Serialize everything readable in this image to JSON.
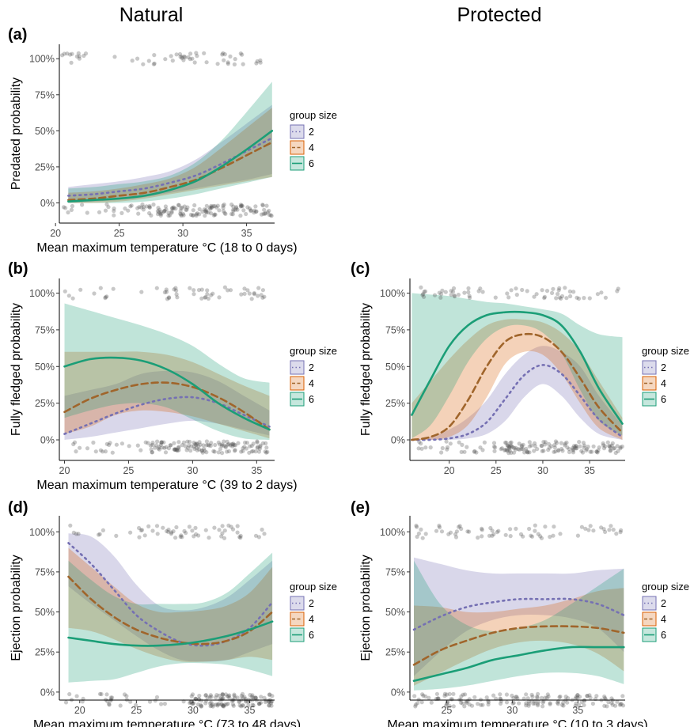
{
  "column_titles": [
    "Natural",
    "Protected"
  ],
  "legend": {
    "title": "group size",
    "entries": [
      "2",
      "4",
      "6"
    ]
  },
  "colors": {
    "2": "#7570B3",
    "4": "#D95F02",
    "6": "#1B9E77",
    "points": "#555555"
  },
  "chart_data": [
    {
      "panel": "(a)",
      "column": "Natural",
      "type": "line",
      "xlabel": "Mean maximum temperature °C (18 to 0 days)",
      "ylabel": "Predated probability",
      "xlim": [
        20.3,
        37.2
      ],
      "xticks": [
        20,
        25,
        30,
        35
      ],
      "ylim": [
        -0.14,
        1.1
      ],
      "yticks": [
        0,
        0.25,
        0.5,
        0.75,
        1.0
      ],
      "yticklabels": [
        "0%",
        "25%",
        "50%",
        "75%",
        "100%"
      ],
      "series": [
        {
          "name": "2",
          "x": [
            21,
            23,
            25,
            27,
            29,
            31,
            33,
            35,
            37
          ],
          "values": [
            0.05,
            0.06,
            0.08,
            0.1,
            0.14,
            0.19,
            0.27,
            0.36,
            0.45
          ],
          "lower": [
            0.0,
            0.01,
            0.02,
            0.04,
            0.07,
            0.1,
            0.13,
            0.16,
            0.2
          ],
          "upper": [
            0.11,
            0.13,
            0.15,
            0.18,
            0.22,
            0.3,
            0.42,
            0.55,
            0.68
          ]
        },
        {
          "name": "4",
          "x": [
            21,
            23,
            25,
            27,
            29,
            31,
            33,
            35,
            37
          ],
          "values": [
            0.02,
            0.03,
            0.05,
            0.07,
            0.11,
            0.16,
            0.24,
            0.33,
            0.42
          ],
          "lower": [
            0.0,
            0.0,
            0.01,
            0.03,
            0.06,
            0.09,
            0.12,
            0.15,
            0.18
          ],
          "upper": [
            0.07,
            0.08,
            0.1,
            0.13,
            0.17,
            0.25,
            0.38,
            0.52,
            0.66
          ]
        },
        {
          "name": "6",
          "x": [
            21,
            23,
            25,
            27,
            29,
            31,
            33,
            35,
            37
          ],
          "values": [
            0.01,
            0.02,
            0.03,
            0.05,
            0.09,
            0.15,
            0.25,
            0.37,
            0.5
          ],
          "lower": [
            0.0,
            0.0,
            0.0,
            0.01,
            0.03,
            0.06,
            0.1,
            0.14,
            0.18
          ],
          "upper": [
            0.1,
            0.11,
            0.13,
            0.15,
            0.19,
            0.28,
            0.43,
            0.63,
            0.84
          ]
        }
      ],
      "points_x_range": [
        20.5,
        37
      ],
      "points_dense_start": 26.5,
      "points_top_gap": [
        22.5,
        26.5
      ]
    },
    {
      "panel": "(b)",
      "column": "Natural",
      "type": "line",
      "xlabel": "Mean maximum temperature °C (39 to 2 days)",
      "ylabel": "Fully fledged probability",
      "xlim": [
        19.6,
        36.4
      ],
      "xticks": [
        20,
        25,
        30,
        35
      ],
      "ylim": [
        -0.14,
        1.1
      ],
      "yticks": [
        0,
        0.25,
        0.5,
        0.75,
        1.0
      ],
      "yticklabels": [
        "0%",
        "25%",
        "50%",
        "75%",
        "100%"
      ],
      "series": [
        {
          "name": "2",
          "x": [
            20,
            22,
            24,
            26,
            28,
            30,
            32,
            34,
            36
          ],
          "values": [
            0.04,
            0.11,
            0.18,
            0.24,
            0.28,
            0.29,
            0.25,
            0.17,
            0.09
          ],
          "lower": [
            0.0,
            0.02,
            0.05,
            0.08,
            0.11,
            0.13,
            0.11,
            0.07,
            0.03
          ],
          "upper": [
            0.3,
            0.34,
            0.38,
            0.45,
            0.47,
            0.46,
            0.4,
            0.3,
            0.2
          ]
        },
        {
          "name": "4",
          "x": [
            20,
            22,
            24,
            26,
            28,
            30,
            32,
            34,
            36
          ],
          "values": [
            0.19,
            0.28,
            0.34,
            0.38,
            0.39,
            0.36,
            0.29,
            0.19,
            0.07
          ],
          "lower": [
            0.04,
            0.09,
            0.17,
            0.2,
            0.19,
            0.16,
            0.11,
            0.06,
            0.01
          ],
          "upper": [
            0.6,
            0.6,
            0.6,
            0.6,
            0.58,
            0.53,
            0.45,
            0.37,
            0.3
          ]
        },
        {
          "name": "6",
          "x": [
            20,
            22,
            24,
            26,
            28,
            30,
            32,
            34,
            36
          ],
          "values": [
            0.5,
            0.55,
            0.56,
            0.54,
            0.48,
            0.38,
            0.25,
            0.15,
            0.07
          ],
          "lower": [
            0.15,
            0.2,
            0.24,
            0.25,
            0.22,
            0.14,
            0.06,
            0.01,
            0.0
          ],
          "upper": [
            0.93,
            0.88,
            0.83,
            0.78,
            0.72,
            0.64,
            0.52,
            0.42,
            0.39
          ]
        }
      ],
      "points_x_range": [
        20,
        36
      ],
      "points_dense_start": 26.5,
      "points_top_gap": [
        22.5,
        26.5
      ]
    },
    {
      "panel": "(c)",
      "column": "Protected",
      "type": "line",
      "xlabel": "",
      "ylabel": "Fully fledged probability",
      "xlim": [
        15.8,
        38.8
      ],
      "xticks": [
        20,
        25,
        30,
        35
      ],
      "ylim": [
        -0.14,
        1.1
      ],
      "yticks": [
        0,
        0.25,
        0.5,
        0.75,
        1.0
      ],
      "yticklabels": [
        "0%",
        "25%",
        "50%",
        "75%",
        "100%"
      ],
      "series": [
        {
          "name": "2",
          "x": [
            16,
            18,
            20,
            22,
            24,
            26,
            28,
            30,
            32,
            34,
            36,
            38.5
          ],
          "values": [
            0.0,
            0.0,
            0.01,
            0.04,
            0.12,
            0.28,
            0.44,
            0.51,
            0.45,
            0.3,
            0.14,
            0.02
          ],
          "lower": [
            0.0,
            0.0,
            0.0,
            0.01,
            0.04,
            0.13,
            0.29,
            0.38,
            0.3,
            0.15,
            0.04,
            0.0
          ],
          "upper": [
            0.0,
            0.02,
            0.07,
            0.15,
            0.27,
            0.45,
            0.58,
            0.64,
            0.6,
            0.5,
            0.3,
            0.1
          ]
        },
        {
          "name": "4",
          "x": [
            16,
            18,
            20,
            22,
            24,
            26,
            28,
            30,
            32,
            34,
            36,
            38.5
          ],
          "values": [
            0.0,
            0.02,
            0.09,
            0.27,
            0.5,
            0.67,
            0.72,
            0.7,
            0.6,
            0.42,
            0.22,
            0.05
          ],
          "lower": [
            0.0,
            0.0,
            0.02,
            0.1,
            0.29,
            0.52,
            0.6,
            0.58,
            0.45,
            0.25,
            0.08,
            0.0
          ],
          "upper": [
            0.25,
            0.4,
            0.55,
            0.68,
            0.78,
            0.82,
            0.82,
            0.8,
            0.73,
            0.6,
            0.4,
            0.15
          ]
        },
        {
          "name": "6",
          "x": [
            16,
            18,
            20,
            22,
            24,
            26,
            28,
            30,
            32,
            34,
            36,
            38.5
          ],
          "values": [
            0.17,
            0.41,
            0.64,
            0.78,
            0.85,
            0.87,
            0.87,
            0.85,
            0.78,
            0.6,
            0.35,
            0.11
          ],
          "lower": [
            0.01,
            0.1,
            0.3,
            0.53,
            0.69,
            0.77,
            0.78,
            0.73,
            0.59,
            0.34,
            0.13,
            0.03
          ],
          "upper": [
            1.0,
            0.99,
            0.98,
            0.96,
            0.94,
            0.93,
            0.91,
            0.89,
            0.86,
            0.78,
            0.72,
            0.7
          ]
        }
      ],
      "points_x_range": [
        16.5,
        38.5
      ],
      "points_dense_start": 25.5,
      "points_top_gap": [
        23.5,
        26
      ]
    },
    {
      "panel": "(d)",
      "column": "Natural",
      "type": "line",
      "xlabel": "Mean maximum temperature °C (73 to 48 days)",
      "ylabel": "Ejection probability",
      "xlim": [
        18.2,
        37.2
      ],
      "xticks": [
        20,
        25,
        30,
        35
      ],
      "ylim": [
        -0.05,
        1.1
      ],
      "yticks": [
        0,
        0.25,
        0.5,
        0.75,
        1.0
      ],
      "yticklabels": [
        "0%",
        "25%",
        "50%",
        "75%",
        "100%"
      ],
      "series": [
        {
          "name": "2",
          "x": [
            19,
            21,
            23,
            25,
            27,
            29,
            31,
            33,
            35,
            37
          ],
          "values": [
            0.93,
            0.8,
            0.64,
            0.48,
            0.38,
            0.31,
            0.29,
            0.32,
            0.4,
            0.56
          ],
          "lower": [
            0.66,
            0.55,
            0.45,
            0.35,
            0.26,
            0.2,
            0.19,
            0.2,
            0.25,
            0.3
          ],
          "upper": [
            0.99,
            0.97,
            0.85,
            0.67,
            0.54,
            0.51,
            0.53,
            0.59,
            0.7,
            0.82
          ]
        },
        {
          "name": "4",
          "x": [
            19,
            21,
            23,
            25,
            27,
            29,
            31,
            33,
            35,
            37
          ],
          "values": [
            0.72,
            0.58,
            0.47,
            0.39,
            0.34,
            0.31,
            0.3,
            0.32,
            0.38,
            0.5
          ],
          "lower": [
            0.4,
            0.38,
            0.33,
            0.27,
            0.22,
            0.19,
            0.19,
            0.2,
            0.22,
            0.2
          ],
          "upper": [
            0.9,
            0.78,
            0.66,
            0.55,
            0.5,
            0.5,
            0.51,
            0.54,
            0.62,
            0.78
          ]
        },
        {
          "name": "6",
          "x": [
            19,
            21,
            23,
            25,
            27,
            29,
            31,
            33,
            35,
            37
          ],
          "values": [
            0.34,
            0.32,
            0.3,
            0.29,
            0.29,
            0.3,
            0.32,
            0.35,
            0.39,
            0.44
          ],
          "lower": [
            0.06,
            0.07,
            0.08,
            0.12,
            0.16,
            0.18,
            0.18,
            0.17,
            0.14,
            0.1
          ],
          "upper": [
            0.82,
            0.7,
            0.6,
            0.55,
            0.55,
            0.55,
            0.56,
            0.62,
            0.74,
            0.87
          ]
        }
      ],
      "points_x_range": [
        18.6,
        37
      ],
      "points_dense_start": 29.5,
      "points_top_gap": [
        22.5,
        24.8
      ]
    },
    {
      "panel": "(e)",
      "column": "Protected",
      "type": "line",
      "xlabel": "Mean maximum temperature °C (10 to 3 days)",
      "ylabel": "Ejection probability",
      "xlim": [
        22.2,
        38.6
      ],
      "xticks": [
        25,
        30,
        35
      ],
      "ylim": [
        -0.05,
        1.1
      ],
      "yticks": [
        0,
        0.25,
        0.5,
        0.75,
        1.0
      ],
      "yticklabels": [
        "0%",
        "25%",
        "50%",
        "75%",
        "100%"
      ],
      "series": [
        {
          "name": "2",
          "x": [
            22.5,
            24.5,
            26.5,
            28.5,
            30.5,
            32.5,
            34.5,
            36.5,
            38.5
          ],
          "values": [
            0.39,
            0.47,
            0.53,
            0.56,
            0.58,
            0.58,
            0.58,
            0.55,
            0.48
          ],
          "lower": [
            0.1,
            0.25,
            0.38,
            0.45,
            0.48,
            0.48,
            0.46,
            0.4,
            0.25
          ],
          "upper": [
            0.84,
            0.8,
            0.76,
            0.74,
            0.74,
            0.74,
            0.74,
            0.76,
            0.77
          ]
        },
        {
          "name": "4",
          "x": [
            22.5,
            24.5,
            26.5,
            28.5,
            30.5,
            32.5,
            34.5,
            36.5,
            38.5
          ],
          "values": [
            0.17,
            0.26,
            0.32,
            0.37,
            0.4,
            0.41,
            0.41,
            0.4,
            0.37
          ],
          "lower": [
            0.04,
            0.12,
            0.2,
            0.27,
            0.31,
            0.32,
            0.3,
            0.24,
            0.13
          ],
          "upper": [
            0.54,
            0.53,
            0.5,
            0.5,
            0.52,
            0.54,
            0.58,
            0.63,
            0.65
          ]
        },
        {
          "name": "6",
          "x": [
            22.5,
            24.5,
            26.5,
            28.5,
            30.5,
            32.5,
            34.5,
            36.5,
            38.5
          ],
          "values": [
            0.07,
            0.11,
            0.15,
            0.2,
            0.23,
            0.26,
            0.28,
            0.28,
            0.28
          ],
          "lower": [
            0.01,
            0.02,
            0.04,
            0.07,
            0.1,
            0.12,
            0.12,
            0.1,
            0.05
          ],
          "upper": [
            0.82,
            0.55,
            0.42,
            0.38,
            0.4,
            0.45,
            0.55,
            0.66,
            0.77
          ]
        }
      ],
      "points_x_range": [
        22.5,
        38.5
      ],
      "points_dense_start": 25,
      "points_top_gap": [
        29,
        29.5
      ]
    }
  ]
}
